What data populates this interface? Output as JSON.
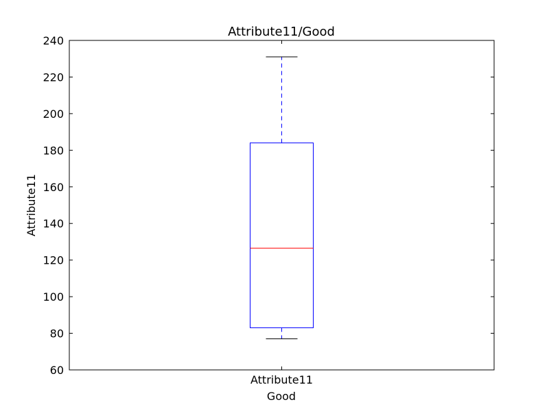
{
  "chart_data": {
    "type": "box",
    "title": "Attribute11/Good",
    "xlabel": "Good",
    "ylabel": "Attribute11",
    "ylim": [
      60,
      240
    ],
    "yticks": [
      60,
      80,
      100,
      120,
      140,
      160,
      180,
      200,
      220,
      240
    ],
    "categories": [
      "Attribute11"
    ],
    "boxes": [
      {
        "category": "Attribute11",
        "whisker_low": 77,
        "q1": 83,
        "median": 126.5,
        "q3": 184,
        "whisker_high": 231
      }
    ],
    "grid": false,
    "colors": {
      "box": "#0000ff",
      "median": "#ff0000",
      "whisker": "#0000ff",
      "cap": "#000000",
      "axes": "#000000"
    }
  }
}
